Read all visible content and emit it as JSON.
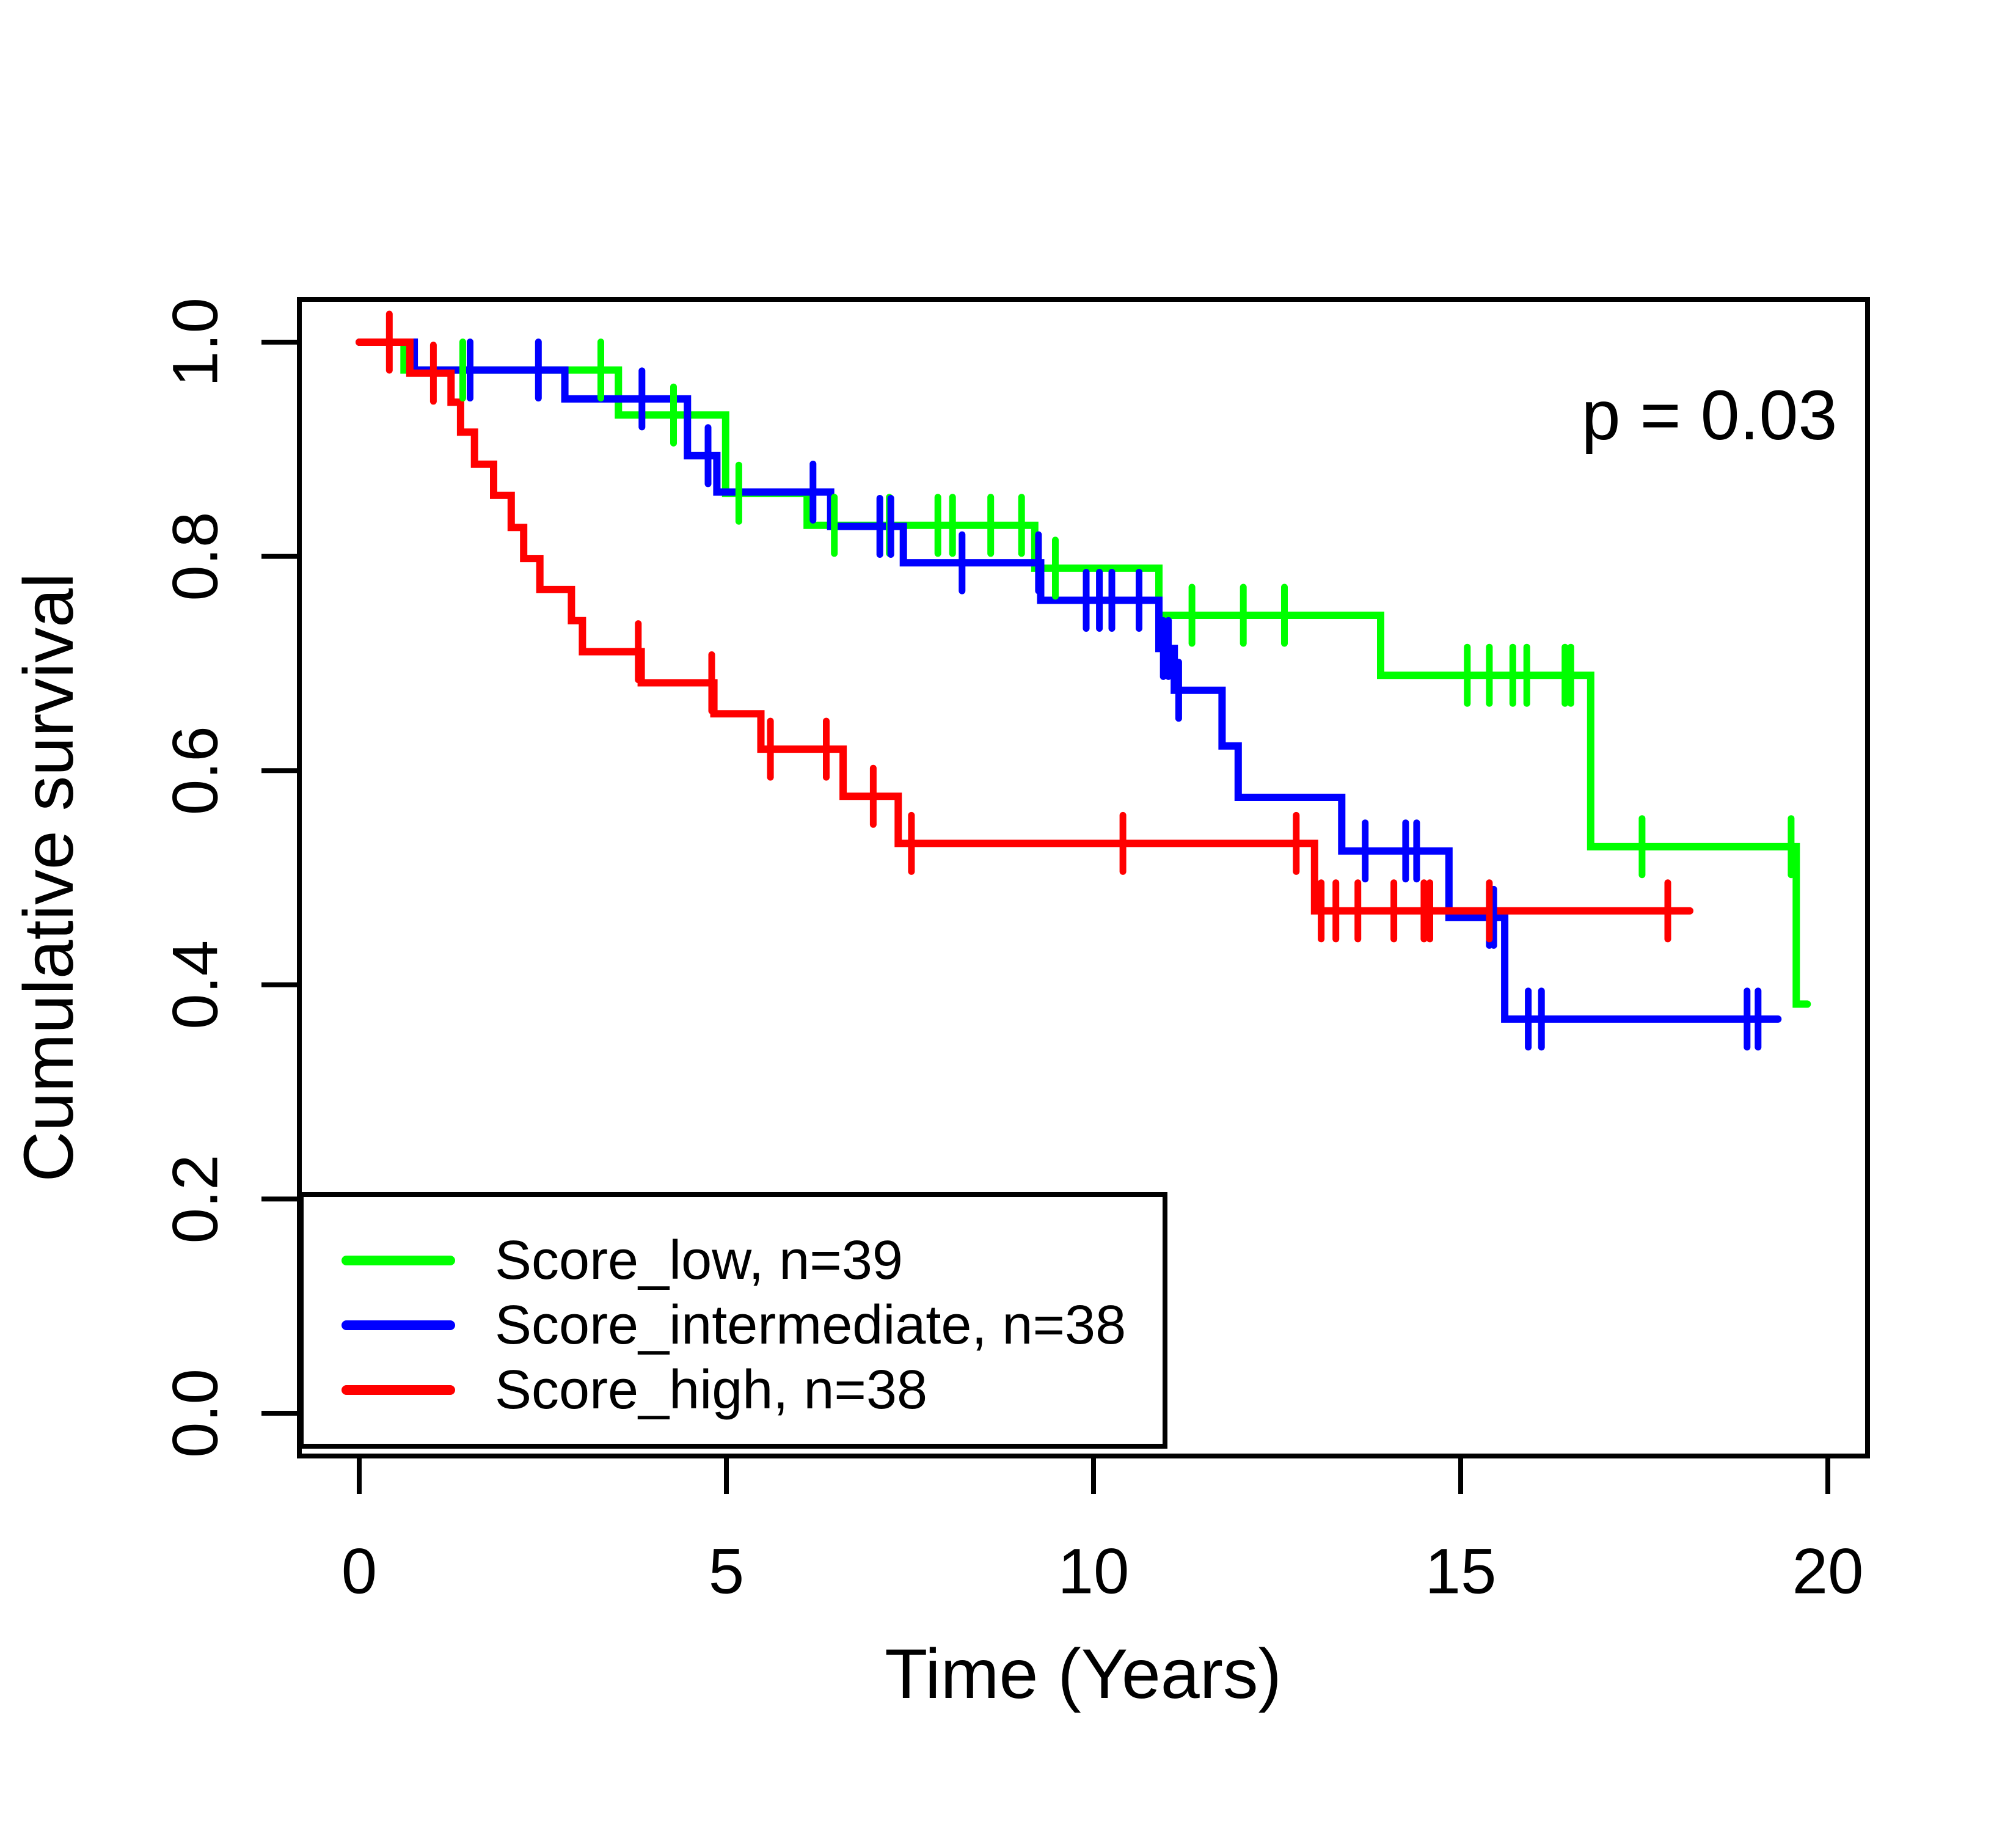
{
  "chart_data": {
    "type": "line",
    "subtype": "kaplan_meier_step",
    "title": "",
    "xlabel": "Time (Years)",
    "ylabel": "Cumulative survival",
    "annotation": "p = 0.03",
    "xlim": [
      0,
      20
    ],
    "ylim": [
      0.0,
      1.0
    ],
    "x_tick_values": [
      0,
      5,
      10,
      15,
      20
    ],
    "x_tick_labels": [
      "0",
      "5",
      "10",
      "15",
      "20"
    ],
    "y_tick_values": [
      0.0,
      0.2,
      0.4,
      0.6,
      0.8,
      1.0
    ],
    "y_tick_labels": [
      "0.0",
      "0.2",
      "0.4",
      "0.6",
      "0.8",
      "1.0"
    ],
    "grid": false,
    "legend_position": "bottom-left",
    "background_color": "#ffffff",
    "axis_color": "#000000",
    "series": [
      {
        "name": "Score_low",
        "n": 39,
        "label": "Score_low, n=39",
        "color": "#00FF00",
        "start": [
          0,
          1.0
        ],
        "steps": [
          [
            0.61,
            0.974
          ],
          [
            3.53,
            0.932
          ],
          [
            4.99,
            0.859
          ],
          [
            6.1,
            0.829
          ],
          [
            9.2,
            0.789
          ],
          [
            10.89,
            0.745
          ],
          [
            13.91,
            0.689
          ],
          [
            16.77,
            0.529
          ],
          [
            19.57,
            0.382
          ]
        ],
        "end_time": 19.72,
        "censor_times": [
          1.41,
          3.29,
          4.28,
          5.17,
          6.47,
          7.22,
          7.88,
          8.08,
          8.6,
          9.02,
          9.48,
          11.34,
          12.04,
          12.6,
          15.09,
          15.39,
          15.71,
          15.9,
          16.42,
          16.5,
          17.47,
          19.5
        ]
      },
      {
        "name": "Score_intermediate",
        "n": 38,
        "label": "Score_intermediate, n=38",
        "color": "#0000FF",
        "start": [
          0,
          1.0
        ],
        "steps": [
          [
            0.75,
            0.974
          ],
          [
            2.8,
            0.947
          ],
          [
            4.47,
            0.894
          ],
          [
            4.87,
            0.86
          ],
          [
            6.42,
            0.828
          ],
          [
            7.41,
            0.794
          ],
          [
            9.28,
            0.759
          ],
          [
            10.89,
            0.714
          ],
          [
            11.1,
            0.675
          ],
          [
            11.75,
            0.623
          ],
          [
            11.97,
            0.575
          ],
          [
            13.38,
            0.525
          ],
          [
            14.84,
            0.463
          ],
          [
            15.6,
            0.368
          ]
        ],
        "end_time": 19.32,
        "censor_times": [
          1.51,
          2.44,
          3.85,
          4.75,
          6.18,
          7.09,
          7.24,
          8.21,
          9.25,
          9.9,
          10.08,
          10.25,
          10.62,
          10.95,
          11.02,
          11.16,
          13.7,
          14.25,
          14.4,
          15.39,
          15.45,
          15.92,
          16.1,
          18.9,
          19.05
        ]
      },
      {
        "name": "Score_high",
        "n": 38,
        "label": "Score_high, n=38",
        "color": "#FF0000",
        "start": [
          0,
          1.0
        ],
        "steps": [
          [
            0.69,
            0.971
          ],
          [
            1.25,
            0.944
          ],
          [
            1.38,
            0.916
          ],
          [
            1.57,
            0.886
          ],
          [
            1.83,
            0.857
          ],
          [
            2.07,
            0.827
          ],
          [
            2.24,
            0.798
          ],
          [
            2.46,
            0.769
          ],
          [
            2.89,
            0.74
          ],
          [
            3.04,
            0.711
          ],
          [
            3.84,
            0.682
          ],
          [
            4.83,
            0.653
          ],
          [
            5.47,
            0.62
          ],
          [
            6.59,
            0.576
          ],
          [
            7.34,
            0.532
          ],
          [
            13.01,
            0.469
          ]
        ],
        "end_time": 18.12,
        "censor_times": [
          0.41,
          1.01,
          3.8,
          4.8,
          5.6,
          6.36,
          7.0,
          7.52,
          10.4,
          12.76,
          13.1,
          13.3,
          13.6,
          14.09,
          14.5,
          14.58,
          15.39,
          17.82
        ]
      }
    ]
  }
}
